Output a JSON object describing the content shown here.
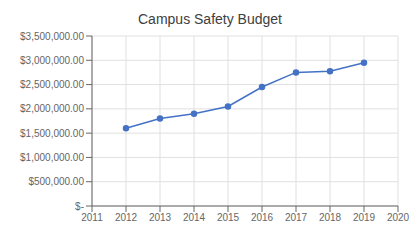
{
  "chart_data": {
    "type": "line",
    "title": "Campus Safety Budget",
    "x": [
      2012,
      2013,
      2014,
      2015,
      2016,
      2017,
      2018,
      2019
    ],
    "values": [
      1600000,
      1800000,
      1900000,
      2050000,
      2450000,
      2750000,
      2775000,
      2950000
    ],
    "color": "#4472C4",
    "marker": "circle",
    "xlim": [
      2011,
      2020
    ],
    "xticks": [
      2011,
      2012,
      2013,
      2014,
      2015,
      2016,
      2017,
      2018,
      2019,
      2020
    ],
    "ylim": [
      0,
      3500000
    ],
    "yticks": [
      {
        "value": 0,
        "label": "$-"
      },
      {
        "value": 500000,
        "label": "$500,000.00"
      },
      {
        "value": 1000000,
        "label": "$1,000,000.00"
      },
      {
        "value": 1500000,
        "label": "$1,500,000.00"
      },
      {
        "value": 2000000,
        "label": "$2,000,000.00"
      },
      {
        "value": 2500000,
        "label": "$2,500,000.00"
      },
      {
        "value": 3000000,
        "label": "$3,000,000.00"
      },
      {
        "value": 3500000,
        "label": "$3,500,000.00"
      }
    ],
    "grid": true
  }
}
